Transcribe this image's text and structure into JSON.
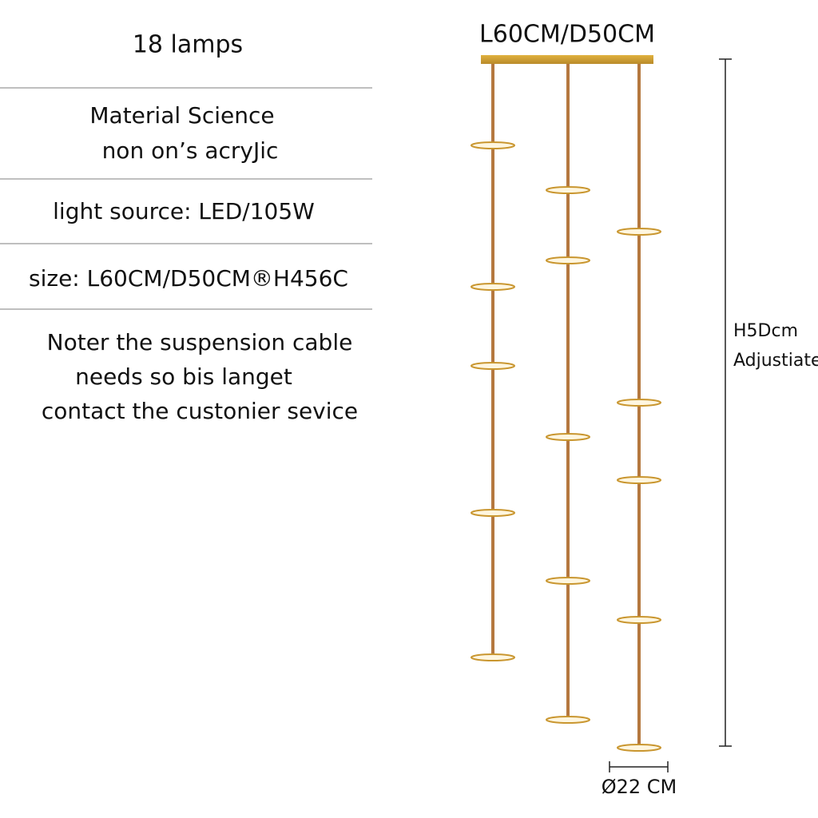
{
  "title": "18 lamps",
  "specs": [
    {
      "lines": [
        "Material Science",
        "non on’s acryJic"
      ]
    },
    {
      "lines": [
        "light source: LED/105W"
      ]
    },
    {
      "lines": [
        "size: L60CM/D50CM®H456C"
      ]
    },
    {
      "lines": [
        "Noter the suspension cable",
        "needs so bis langet",
        "contact the custonier sevice"
      ]
    }
  ],
  "diagram": {
    "width_label": "L60CM/D50CM",
    "height_label": [
      "H5Dcm",
      "Adjustiate"
    ],
    "disc_label": "Ø22 CM"
  }
}
